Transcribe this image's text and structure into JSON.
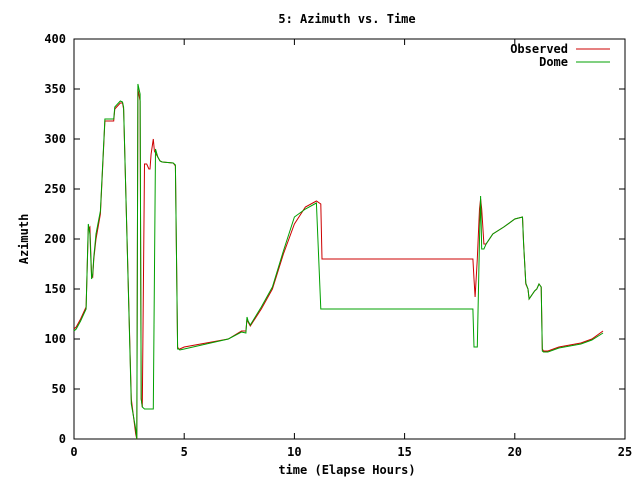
{
  "chart_data": {
    "type": "line",
    "title": "5: Azimuth vs. Time",
    "xlabel": "time (Elapse Hours)",
    "ylabel": "Azimuth",
    "xlim": [
      0,
      25
    ],
    "ylim": [
      0,
      400
    ],
    "xticks": [
      0,
      5,
      10,
      15,
      20,
      25
    ],
    "yticks": [
      0,
      50,
      100,
      150,
      200,
      250,
      300,
      350,
      400
    ],
    "grid": false,
    "legend": "top-right",
    "series": [
      {
        "name": "Observed",
        "color": "#cc0000",
        "x": [
          0,
          0.1,
          0.3,
          0.55,
          0.65,
          0.72,
          0.8,
          0.85,
          0.9,
          1.0,
          1.2,
          1.4,
          1.45,
          1.8,
          1.85,
          2.1,
          2.2,
          2.25,
          2.6,
          2.8,
          2.85,
          2.9,
          3.0,
          3.05,
          3.1,
          3.2,
          3.25,
          3.3,
          3.4,
          3.45,
          3.5,
          3.6,
          3.65,
          3.7,
          3.75,
          3.8,
          3.85,
          3.9,
          4.0,
          4.5,
          4.6,
          4.7,
          4.75,
          4.8,
          5.0,
          6.0,
          7.0,
          7.6,
          7.8,
          7.85,
          7.9,
          8.0,
          8.5,
          9.0,
          9.5,
          10.0,
          10.5,
          11.0,
          11.2,
          11.25,
          11.3,
          12,
          18,
          18.1,
          18.15,
          18.2,
          18.3,
          18.4,
          18.45,
          18.5,
          18.6,
          18.7,
          19.0,
          19.5,
          20.0,
          20.35,
          20.4,
          20.5,
          20.6,
          20.65,
          20.9,
          21.0,
          21.1,
          21.2,
          21.25,
          21.3,
          21.5,
          22,
          22.5,
          23,
          23.5,
          24
        ],
        "y": [
          110,
          112,
          120,
          132,
          210,
          212,
          163,
          162,
          180,
          200,
          225,
          318,
          318,
          318,
          330,
          336,
          336,
          330,
          40,
          5,
          0,
          350,
          338,
          40,
          32,
          275,
          275,
          275,
          270,
          270,
          285,
          300,
          288,
          286,
          284,
          282,
          280,
          278,
          277,
          276,
          273,
          92,
          90,
          90,
          92,
          96,
          100,
          108,
          108,
          120,
          117,
          113,
          130,
          150,
          185,
          215,
          232,
          238,
          235,
          180,
          180,
          180,
          180,
          180,
          160,
          142,
          180,
          230,
          240,
          230,
          195,
          195,
          205,
          212,
          220,
          222,
          196,
          155,
          150,
          140,
          148,
          150,
          155,
          152,
          90,
          88,
          88,
          92,
          94,
          96,
          100,
          108
        ]
      },
      {
        "name": "Dome",
        "color": "#00a000",
        "x": [
          0,
          0.1,
          0.3,
          0.55,
          0.65,
          0.72,
          0.8,
          0.85,
          0.9,
          1.0,
          1.2,
          1.4,
          1.45,
          1.8,
          1.85,
          2.1,
          2.2,
          2.25,
          2.6,
          2.8,
          2.85,
          2.9,
          3.0,
          3.05,
          3.1,
          3.2,
          3.3,
          3.6,
          3.7,
          3.8,
          3.85,
          3.9,
          4.0,
          4.5,
          4.6,
          4.7,
          4.75,
          4.8,
          5.0,
          6.0,
          7.0,
          7.6,
          7.8,
          7.85,
          7.9,
          8.0,
          8.5,
          9.0,
          9.5,
          10.0,
          10.5,
          11.0,
          11.2,
          11.25,
          11.3,
          12,
          18,
          18.1,
          18.15,
          18.3,
          18.4,
          18.45,
          18.5,
          18.6,
          18.7,
          19.0,
          19.5,
          20.0,
          20.35,
          20.4,
          20.5,
          20.6,
          20.65,
          20.9,
          21.0,
          21.1,
          21.2,
          21.25,
          21.3,
          21.5,
          22,
          22.5,
          23,
          23.5,
          24
        ],
        "y": [
          108,
          110,
          118,
          130,
          215,
          205,
          160,
          165,
          182,
          205,
          228,
          320,
          320,
          320,
          332,
          338,
          337,
          332,
          35,
          10,
          0,
          355,
          345,
          40,
          32,
          30,
          30,
          30,
          290,
          282,
          280,
          278,
          277,
          276,
          274,
          90,
          90,
          89,
          90,
          95,
          100,
          107,
          106,
          122,
          118,
          114,
          132,
          152,
          188,
          222,
          230,
          236,
          130,
          130,
          130,
          130,
          130,
          130,
          92,
          92,
          200,
          243,
          190,
          190,
          195,
          205,
          212,
          220,
          222,
          195,
          156,
          150,
          140,
          148,
          150,
          155,
          152,
          88,
          87,
          87,
          91,
          93,
          95,
          99,
          106
        ]
      }
    ]
  }
}
